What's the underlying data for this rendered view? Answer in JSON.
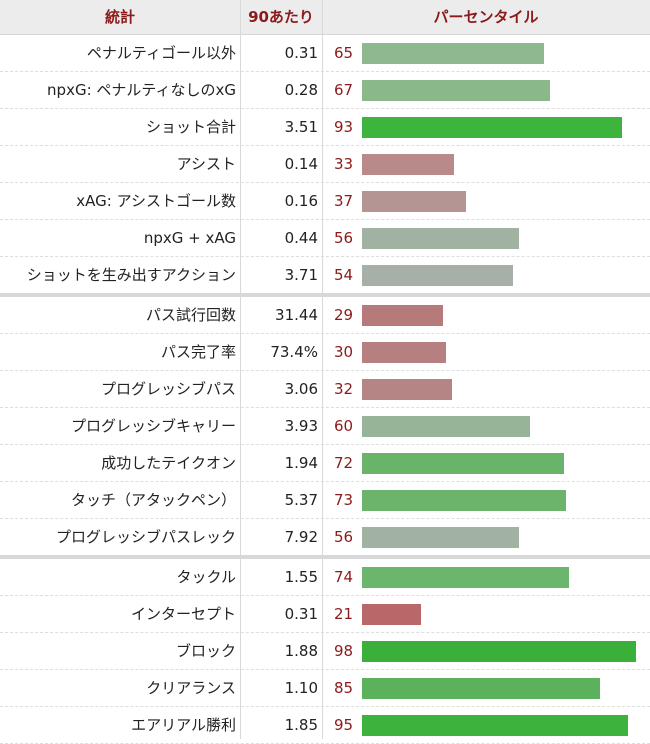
{
  "header": {
    "stat": "統計",
    "per90": "90あたり",
    "percentile": "パーセンタイル"
  },
  "groups": [
    {
      "rows": [
        {
          "stat": "ペナルティゴール以外",
          "per90": "0.31",
          "pct": 65,
          "color": "#8fb88f"
        },
        {
          "stat": "npxG: ペナルティなしのxG",
          "per90": "0.28",
          "pct": 67,
          "color": "#8bb88b"
        },
        {
          "stat": "ショット合計",
          "per90": "3.51",
          "pct": 93,
          "color": "#3db43d"
        },
        {
          "stat": "アシスト",
          "per90": "0.14",
          "pct": 33,
          "color": "#b88a8a"
        },
        {
          "stat": "xAG: アシストゴール数",
          "per90": "0.16",
          "pct": 37,
          "color": "#b59494"
        },
        {
          "stat": "npxG + xAG",
          "per90": "0.44",
          "pct": 56,
          "color": "#a2b2a2"
        },
        {
          "stat": "ショットを生み出すアクション",
          "per90": "3.71",
          "pct": 54,
          "color": "#a6b0a6"
        }
      ]
    },
    {
      "rows": [
        {
          "stat": "パス試行回数",
          "per90": "31.44",
          "pct": 29,
          "color": "#b77a7a"
        },
        {
          "stat": "パス完了率",
          "per90": "73.4%",
          "pct": 30,
          "color": "#b78080"
        },
        {
          "stat": "プログレッシブパス",
          "per90": "3.06",
          "pct": 32,
          "color": "#b58484"
        },
        {
          "stat": "プログレッシブキャリー",
          "per90": "3.93",
          "pct": 60,
          "color": "#98b498"
        },
        {
          "stat": "成功したテイクオン",
          "per90": "1.94",
          "pct": 72,
          "color": "#6ab46a"
        },
        {
          "stat": "タッチ（アタックペン）",
          "per90": "5.37",
          "pct": 73,
          "color": "#6cb46c"
        },
        {
          "stat": "プログレッシブパスレック",
          "per90": "7.92",
          "pct": 56,
          "color": "#a2b2a2"
        }
      ]
    },
    {
      "rows": [
        {
          "stat": "タックル",
          "per90": "1.55",
          "pct": 74,
          "color": "#6cb56c"
        },
        {
          "stat": "インターセプト",
          "per90": "0.31",
          "pct": 21,
          "color": "#b86868"
        },
        {
          "stat": "ブロック",
          "per90": "1.88",
          "pct": 98,
          "color": "#3aaf3a"
        },
        {
          "stat": "クリアランス",
          "per90": "1.10",
          "pct": 85,
          "color": "#5cb25c"
        },
        {
          "stat": "エアリアル勝利",
          "per90": "1.85",
          "pct": 95,
          "color": "#3db33d"
        }
      ]
    }
  ]
}
